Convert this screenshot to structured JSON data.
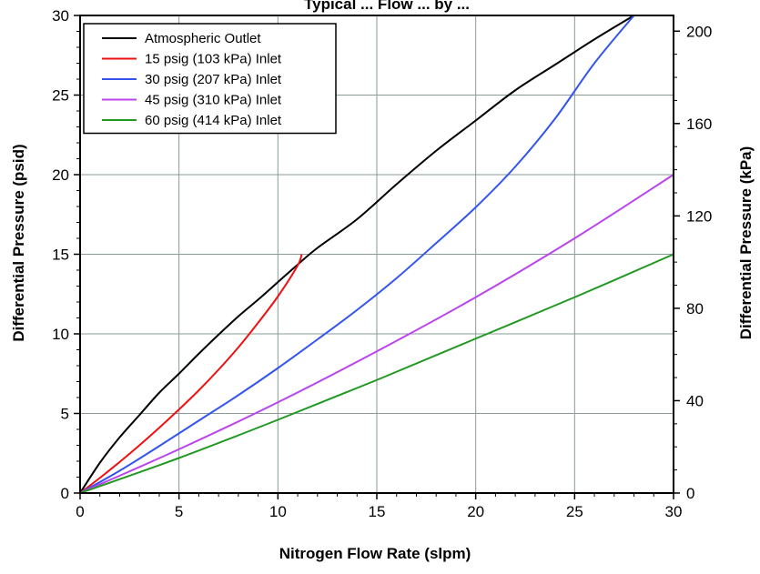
{
  "chart_data": {
    "type": "line",
    "title": "Typical  ... Flow ... by ...",
    "xlabel": "Nitrogen Flow Rate (slpm)",
    "ylabel": "Differential Pressure (psid)",
    "y2label": "Differential Pressure (kPa)",
    "xlim": [
      0,
      30
    ],
    "ylim": [
      0,
      30
    ],
    "y2lim": [
      0,
      206.8
    ],
    "x_ticks": [
      "0",
      "5",
      "10",
      "15",
      "20",
      "25",
      "30"
    ],
    "x_tick_values": [
      0,
      5,
      10,
      15,
      20,
      25,
      30
    ],
    "y_ticks": [
      "0",
      "5",
      "10",
      "15",
      "20",
      "25",
      "30"
    ],
    "y_tick_values": [
      0,
      5,
      10,
      15,
      20,
      25,
      30
    ],
    "y2_ticks": [
      "0",
      "40",
      "80",
      "120",
      "160",
      "200"
    ],
    "y2_tick_values": [
      0,
      40,
      80,
      120,
      160,
      200
    ],
    "grid": true,
    "legend_position": "top-left",
    "series": [
      {
        "name": "Atmospheric Outlet",
        "color": "#000000",
        "x": [
          0,
          1,
          2,
          3,
          4,
          5,
          6,
          7,
          8,
          9,
          10,
          11,
          12,
          14,
          16,
          18,
          20,
          22,
          24,
          26,
          28
        ],
        "y": [
          0,
          1.9,
          3.5,
          4.9,
          6.3,
          7.5,
          8.75,
          9.95,
          11.1,
          12.15,
          13.25,
          14.35,
          15.4,
          17.2,
          19.4,
          21.5,
          23.4,
          25.3,
          26.9,
          28.5,
          30
        ]
      },
      {
        "name": "15 psig (103 kPa) Inlet",
        "color": "#ee1111",
        "x": [
          0,
          1,
          2,
          3,
          4,
          5,
          6,
          7,
          8,
          9,
          10,
          11,
          11.2
        ],
        "y": [
          0,
          0.95,
          1.95,
          3.0,
          4.1,
          5.25,
          6.45,
          7.75,
          9.15,
          10.7,
          12.35,
          14.3,
          15
        ]
      },
      {
        "name": "30 psig (207 kPa) Inlet",
        "color": "#3355ee",
        "x": [
          0,
          2,
          4,
          6,
          8,
          10,
          12,
          14,
          16,
          18,
          20,
          22,
          24,
          26,
          28
        ],
        "y": [
          0,
          1.4,
          2.95,
          4.55,
          6.15,
          7.85,
          9.65,
          11.5,
          13.5,
          15.7,
          17.95,
          20.5,
          23.5,
          27.0,
          30
        ]
      },
      {
        "name": "45 psig (310 kPa) Inlet",
        "color": "#bb44ee",
        "x": [
          0,
          5,
          10,
          15,
          20,
          25,
          30
        ],
        "y": [
          0,
          2.75,
          5.7,
          8.9,
          12.3,
          16.0,
          20.0
        ]
      },
      {
        "name": "60 psig (414 kPa) Inlet",
        "color": "#229922",
        "x": [
          0,
          5,
          10,
          15,
          20,
          25,
          30
        ],
        "y": [
          0,
          2.2,
          4.6,
          7.1,
          9.7,
          12.3,
          15.0
        ]
      }
    ]
  }
}
